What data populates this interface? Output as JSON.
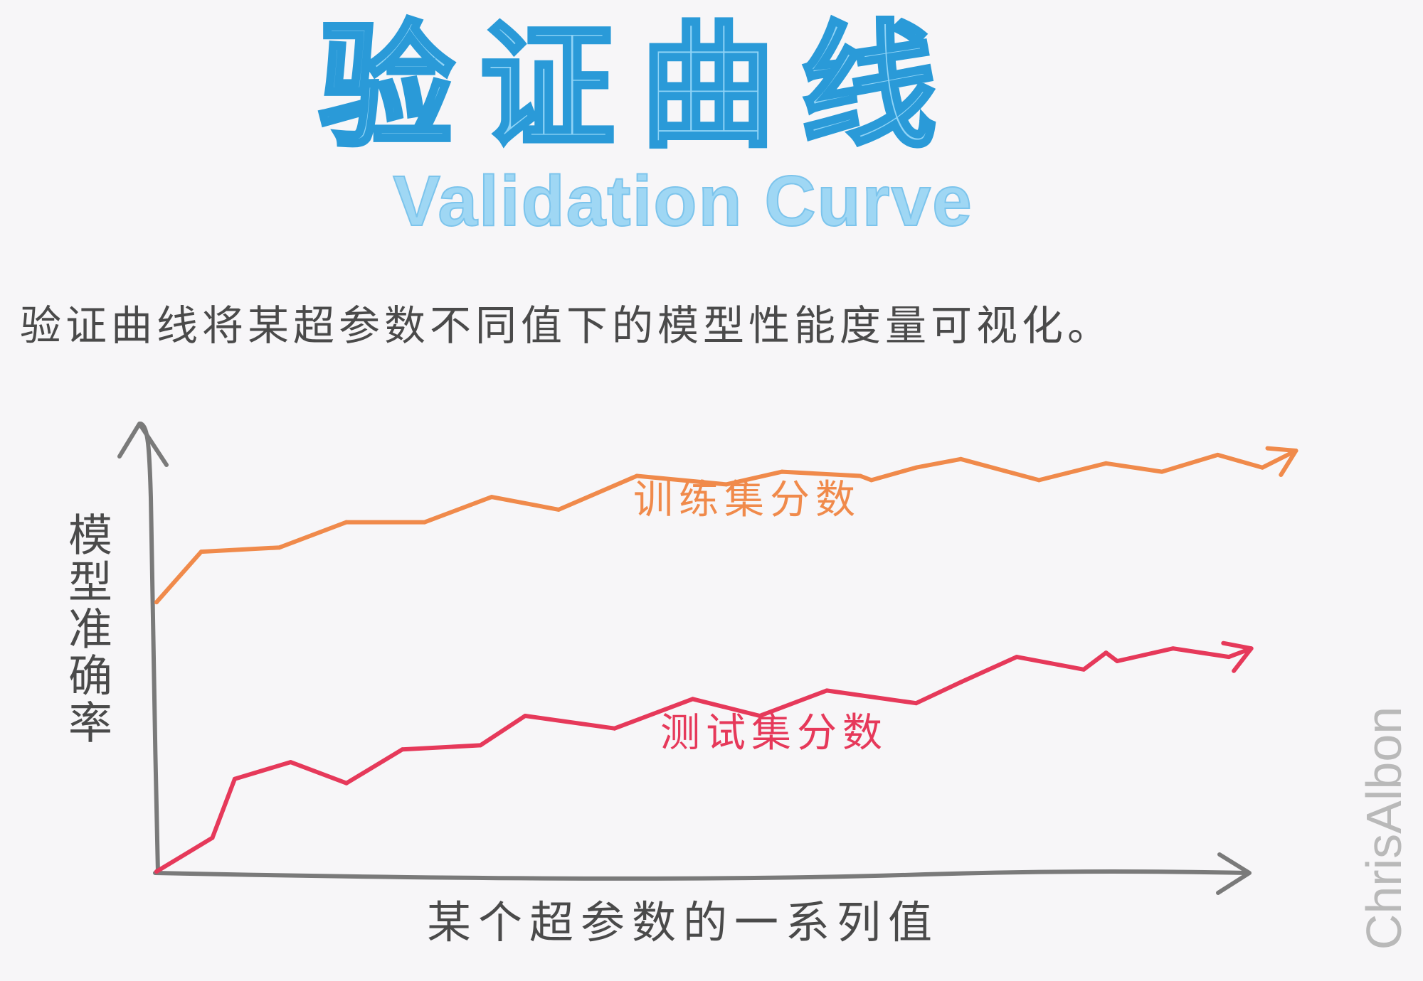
{
  "title": "验证曲线",
  "subtitle": "Validation Curve",
  "description": "验证曲线将某超参数不同值下的模型性能度量可视化。",
  "signature": "ChrisAlbon",
  "colors": {
    "title_fill": "#8fd3f6",
    "title_stroke": "#2a9ad8",
    "train": "#f08a4b",
    "test": "#e6395a",
    "axis": "#7a7a7a",
    "text": "#4a4a4a"
  },
  "chart_data": {
    "type": "line",
    "xlabel": "某个超参数的一系列值",
    "ylabel": "模型准确率",
    "grid": false,
    "series": [
      {
        "name": "训练集分数",
        "color": "#f08a4b",
        "points": [
          [
            0,
            0.64
          ],
          [
            4,
            0.76
          ],
          [
            11,
            0.77
          ],
          [
            17,
            0.83
          ],
          [
            24,
            0.83
          ],
          [
            30,
            0.89
          ],
          [
            36,
            0.86
          ],
          [
            43,
            0.94
          ],
          [
            51,
            0.92
          ],
          [
            56,
            0.95
          ],
          [
            63,
            0.94
          ],
          [
            64,
            0.93
          ],
          [
            68,
            0.96
          ],
          [
            72,
            0.98
          ],
          [
            79,
            0.93
          ],
          [
            85,
            0.97
          ],
          [
            90,
            0.95
          ],
          [
            95,
            0.99
          ],
          [
            99,
            0.96
          ],
          [
            102,
            1.0
          ]
        ]
      },
      {
        "name": "测试集分数",
        "color": "#e6395a",
        "points": [
          [
            0,
            0.0
          ],
          [
            5,
            0.08
          ],
          [
            7,
            0.22
          ],
          [
            12,
            0.26
          ],
          [
            17,
            0.21
          ],
          [
            22,
            0.29
          ],
          [
            29,
            0.3
          ],
          [
            33,
            0.37
          ],
          [
            41,
            0.34
          ],
          [
            48,
            0.41
          ],
          [
            54,
            0.37
          ],
          [
            60,
            0.43
          ],
          [
            68,
            0.4
          ],
          [
            72,
            0.45
          ],
          [
            77,
            0.51
          ],
          [
            83,
            0.48
          ],
          [
            85,
            0.52
          ],
          [
            86,
            0.5
          ],
          [
            91,
            0.53
          ],
          [
            96,
            0.51
          ],
          [
            98,
            0.53
          ]
        ]
      }
    ]
  }
}
